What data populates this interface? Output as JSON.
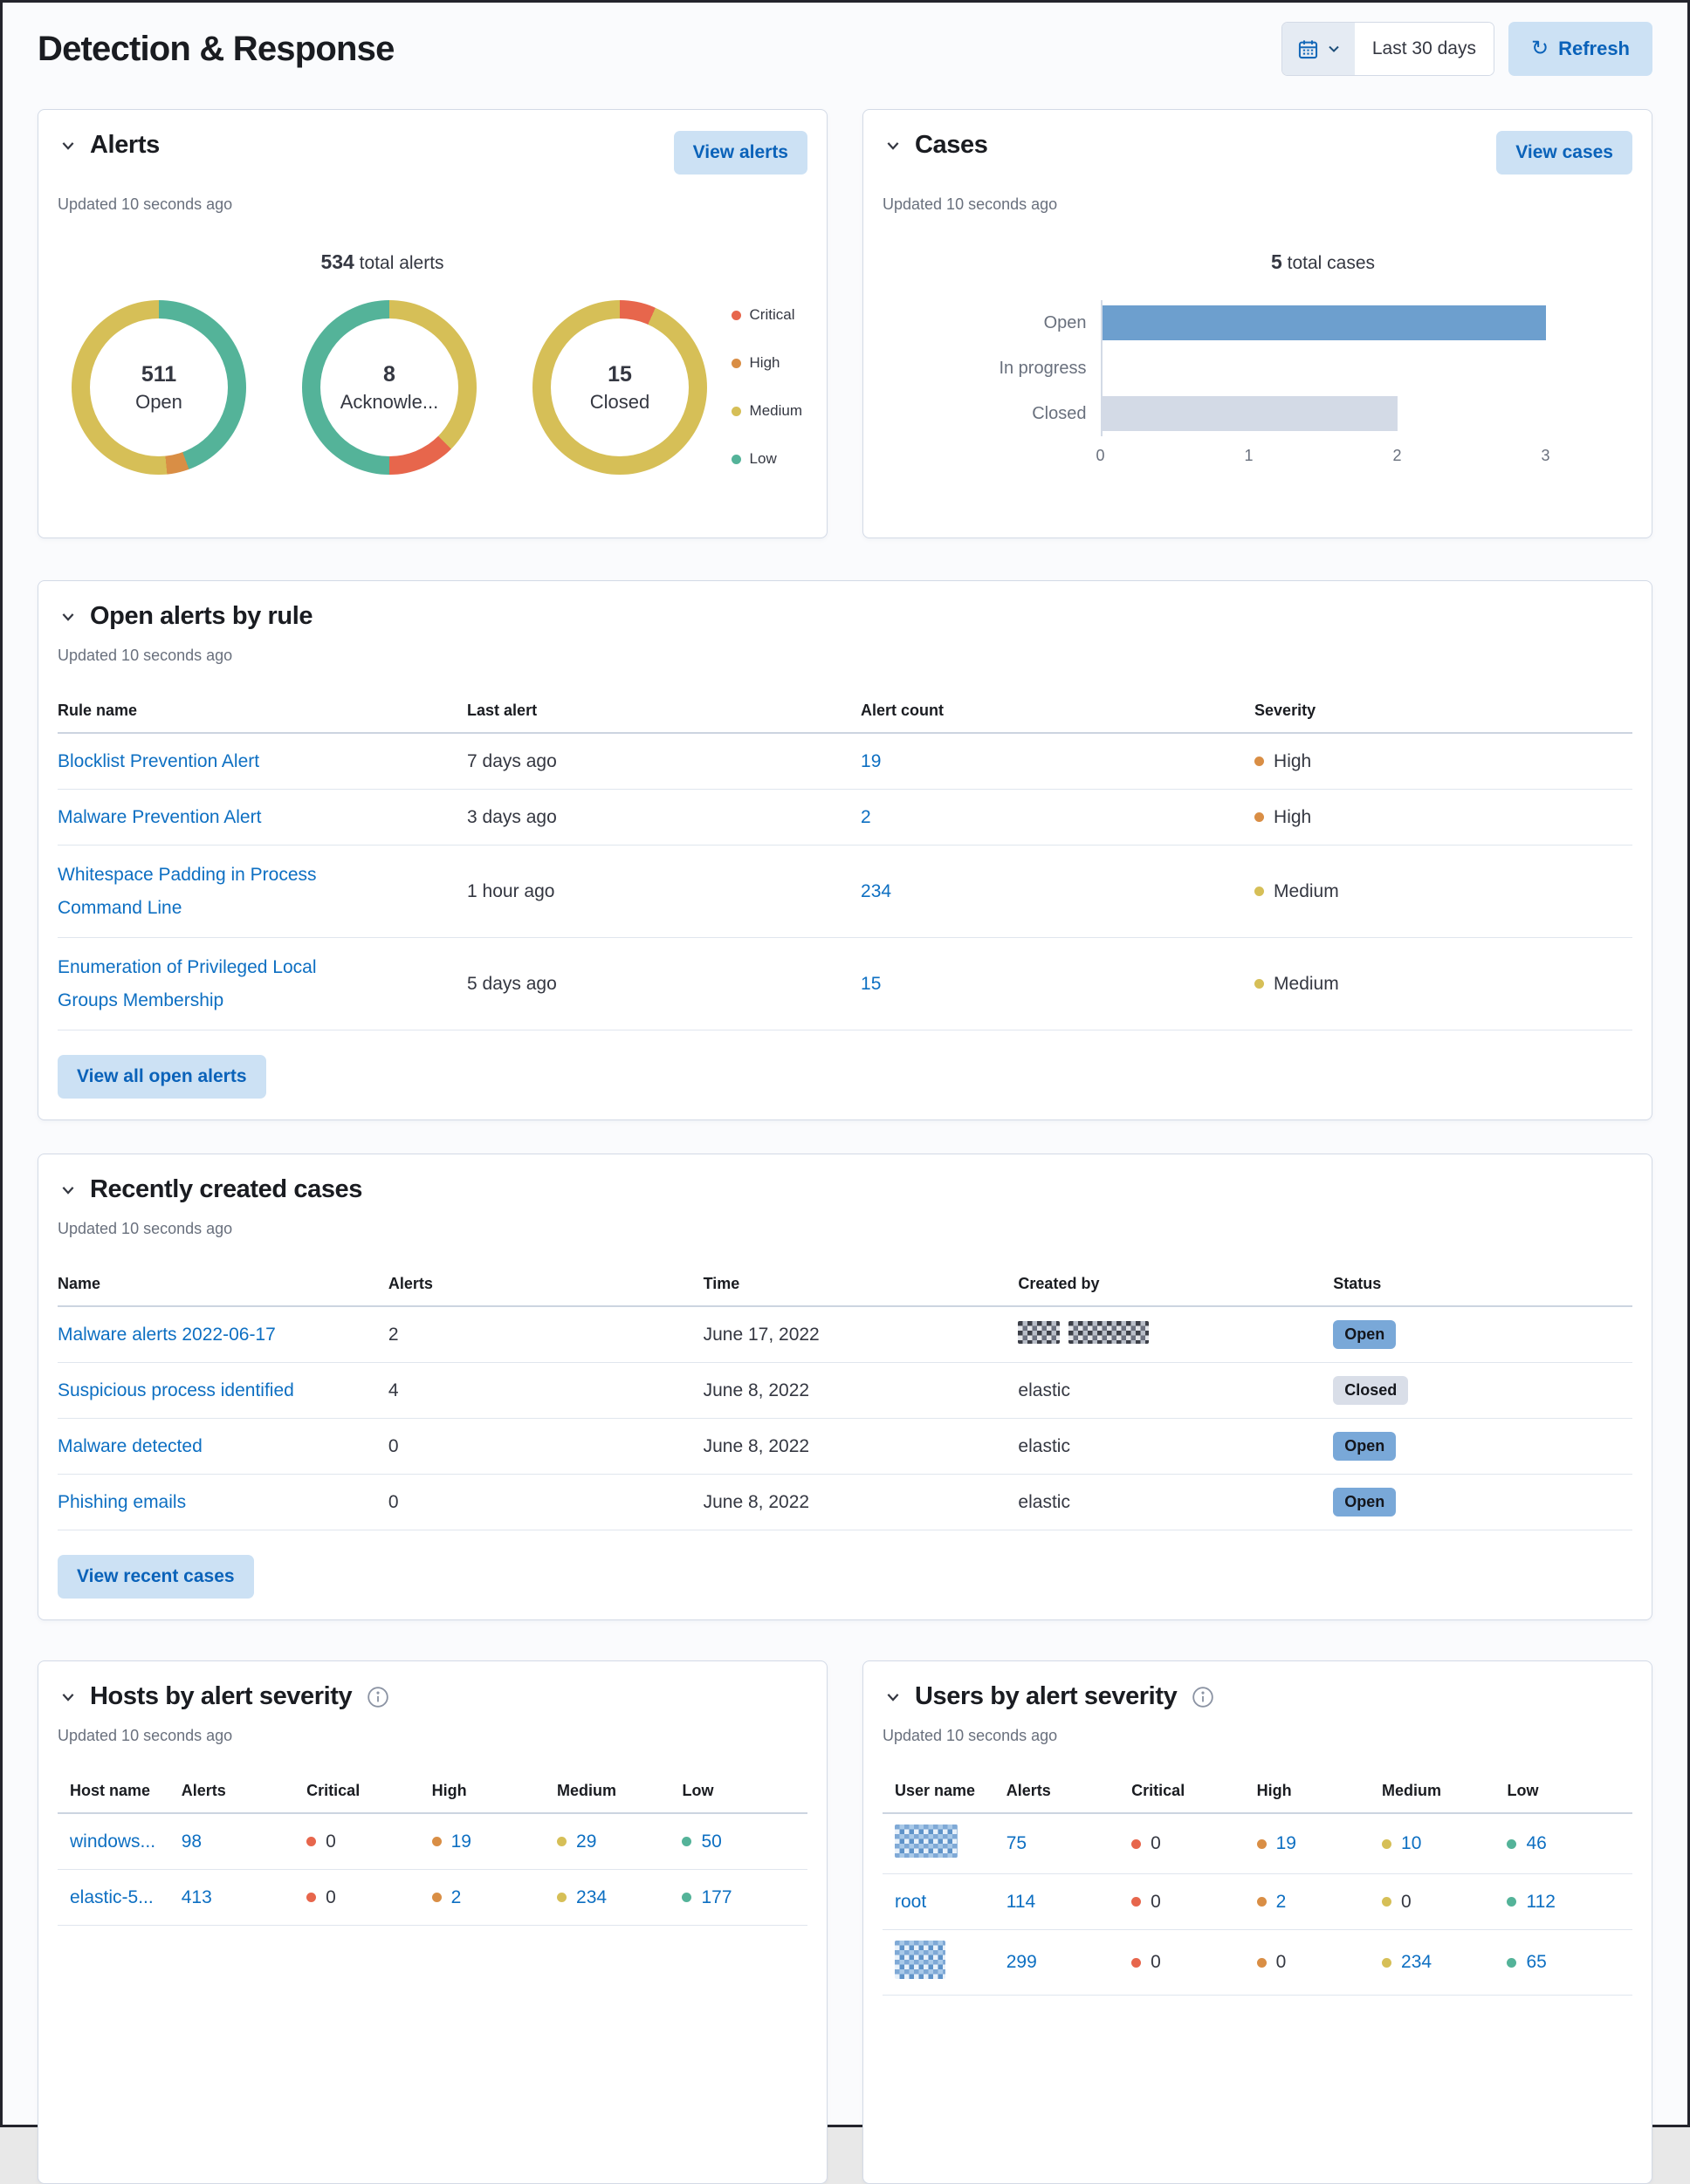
{
  "colors": {
    "severity": {
      "critical": "#E7664C",
      "high": "#D98E45",
      "medium": "#D6BF57",
      "low": "#54B399"
    },
    "link_blue": "#0D6FC2",
    "button_bg": "#CCE1F4",
    "bar_open_blue": "#6D9FCE",
    "bar_closed_gray": "#D3DAE6",
    "badge_open": "#79A8D8",
    "badge_closed": "#D9DEE8"
  },
  "page": {
    "title": "Detection & Response",
    "time_range_label": "Last 30 days",
    "refresh_label": "Refresh"
  },
  "alerts": {
    "title": "Alerts",
    "updated": "Updated 10 seconds ago",
    "view_button": "View alerts",
    "total_value": "534",
    "total_label": " total alerts",
    "legend": [
      {
        "label": "Critical",
        "color": "#E7664C"
      },
      {
        "label": "High",
        "color": "#D98E45"
      },
      {
        "label": "Medium",
        "color": "#D6BF57"
      },
      {
        "label": "Low",
        "color": "#54B399"
      }
    ],
    "chart_data": {
      "type": "pie",
      "subtype": "donut-multiples",
      "title": "534 total alerts",
      "donuts": [
        {
          "value": "511",
          "label": "Open",
          "segments": [
            {
              "name": "Low",
              "color": "#54B399",
              "count": 227,
              "pct": 44.4
            },
            {
              "name": "High",
              "color": "#D98E45",
              "count": 21,
              "pct": 4.1
            },
            {
              "name": "Medium",
              "color": "#D6BF57",
              "count": 263,
              "pct": 51.5
            }
          ]
        },
        {
          "value": "8",
          "label": "Acknowle...",
          "segments": [
            {
              "name": "Medium",
              "color": "#D6BF57",
              "count": 3,
              "pct": 37.5
            },
            {
              "name": "Critical",
              "color": "#E7664C",
              "count": 1,
              "pct": 12.5
            },
            {
              "name": "Low",
              "color": "#54B399",
              "count": 4,
              "pct": 50
            }
          ]
        },
        {
          "value": "15",
          "label": "Closed",
          "segments": [
            {
              "name": "Critical",
              "color": "#E7664C",
              "count": 1,
              "pct": 6.7
            },
            {
              "name": "Medium",
              "color": "#D6BF57",
              "count": 14,
              "pct": 93.3
            }
          ]
        }
      ]
    }
  },
  "cases": {
    "title": "Cases",
    "updated": "Updated 10 seconds ago",
    "view_button": "View cases",
    "total_value": "5",
    "total_label": " total cases",
    "chart_data": {
      "type": "bar",
      "orientation": "horizontal",
      "title": "5 total cases",
      "categories": [
        "Open",
        "In progress",
        "Closed"
      ],
      "values": [
        3,
        0,
        2
      ],
      "xlim": [
        0,
        3
      ],
      "xticks": [
        "0",
        "1",
        "2",
        "3"
      ],
      "bar_colors": [
        "#6D9FCE",
        "#6D9FCE",
        "#D3DAE6"
      ],
      "grid": false,
      "legend": "none"
    }
  },
  "open_alerts": {
    "title": "Open alerts by rule",
    "updated": "Updated 10 seconds ago",
    "columns": [
      "Rule name",
      "Last alert",
      "Alert count",
      "Severity"
    ],
    "rows": [
      {
        "rule": "Blocklist Prevention Alert",
        "last_alert": "7 days ago",
        "count": "19",
        "severity": "High"
      },
      {
        "rule": "Malware Prevention Alert",
        "last_alert": "3 days ago",
        "count": "2",
        "severity": "High"
      },
      {
        "rule": "Whitespace Padding in Process Command Line",
        "last_alert": "1 hour ago",
        "count": "234",
        "severity": "Medium"
      },
      {
        "rule": "Enumeration of Privileged Local Groups Membership",
        "last_alert": "5 days ago",
        "count": "15",
        "severity": "Medium"
      }
    ],
    "view_button": "View all open alerts"
  },
  "recent_cases": {
    "title": "Recently created cases",
    "updated": "Updated 10 seconds ago",
    "columns": [
      "Name",
      "Alerts",
      "Time",
      "Created by",
      "Status"
    ],
    "rows": [
      {
        "name": "Malware alerts 2022-06-17",
        "alerts": "2",
        "time": "June 17, 2022",
        "created_by_redacted": true,
        "status": "Open"
      },
      {
        "name": "Suspicious process identified",
        "alerts": "4",
        "time": "June 8, 2022",
        "created_by": "elastic",
        "status": "Closed"
      },
      {
        "name": "Malware detected",
        "alerts": "0",
        "time": "June 8, 2022",
        "created_by": "elastic",
        "status": "Open"
      },
      {
        "name": "Phishing emails",
        "alerts": "0",
        "time": "June 8, 2022",
        "created_by": "elastic",
        "status": "Open"
      }
    ],
    "view_button": "View recent cases"
  },
  "hosts": {
    "title": "Hosts by alert severity",
    "updated": "Updated 10 seconds ago",
    "columns": [
      "Host name",
      "Alerts",
      "Critical",
      "High",
      "Medium",
      "Low"
    ],
    "rows": [
      {
        "name": "windows...",
        "alerts": "98",
        "critical": "0",
        "high": "19",
        "medium": "29",
        "low": "50"
      },
      {
        "name": "elastic-5...",
        "alerts": "413",
        "critical": "0",
        "high": "2",
        "medium": "234",
        "low": "177"
      }
    ]
  },
  "users": {
    "title": "Users by alert severity",
    "updated": "Updated 10 seconds ago",
    "columns": [
      "User name",
      "Alerts",
      "Critical",
      "High",
      "Medium",
      "Low"
    ],
    "rows": [
      {
        "name_redacted": true,
        "alerts": "75",
        "critical": "0",
        "high": "19",
        "medium": "10",
        "low": "46"
      },
      {
        "name": "root",
        "alerts": "114",
        "critical": "0",
        "high": "2",
        "medium": "0",
        "low": "112"
      },
      {
        "name_redacted": true,
        "alerts": "299",
        "critical": "0",
        "high": "0",
        "medium": "234",
        "low": "65"
      }
    ]
  }
}
